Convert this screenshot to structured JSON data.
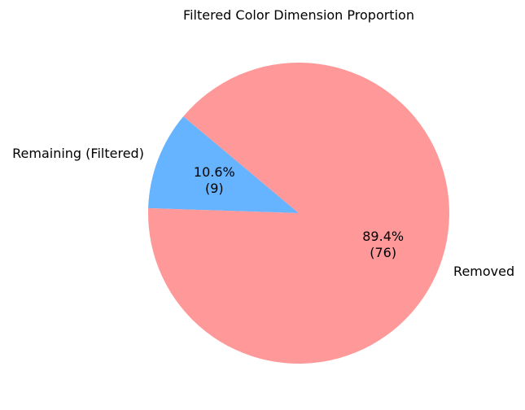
{
  "chart_data": {
    "type": "pie",
    "title": "Filtered Color Dimension Proportion",
    "start_angle_deg": 140,
    "direction": "counterclockwise",
    "slices": [
      {
        "label": "Remaining (Filtered)",
        "value": 9,
        "percent_text": "10.6%",
        "count_text": "(9)",
        "color": "#66b3ff"
      },
      {
        "label": "Removed",
        "value": 76,
        "percent_text": "89.4%",
        "count_text": "(76)",
        "color": "#ff9999"
      }
    ]
  }
}
